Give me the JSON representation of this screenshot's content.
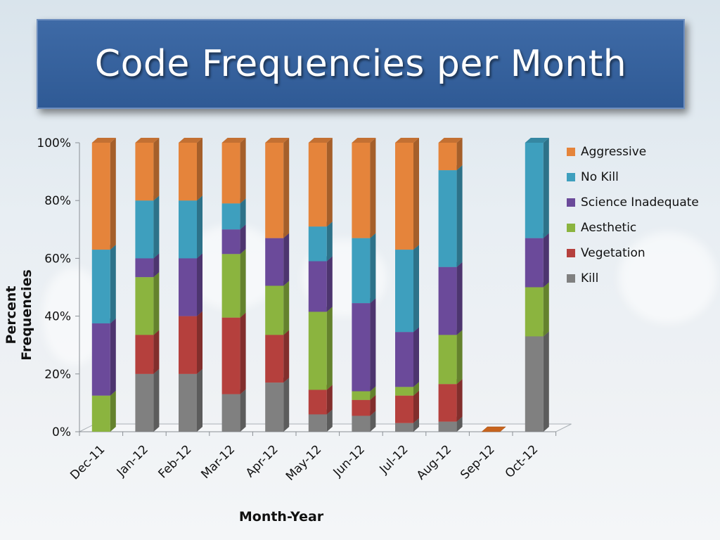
{
  "title": "Code Frequencies per Month",
  "chart_data": {
    "type": "bar",
    "stacked": true,
    "percent": true,
    "xlabel": "Month-Year",
    "ylabel": "Percent Frequencies",
    "ylim": [
      0,
      100
    ],
    "y_ticks": [
      "0%",
      "20%",
      "40%",
      "60%",
      "80%",
      "100%"
    ],
    "categories": [
      "Dec-11",
      "Jan-12",
      "Feb-12",
      "Mar-12",
      "Apr-12",
      "May-12",
      "Jun-12",
      "Jul-12",
      "Aug-12",
      "Sep-12",
      "Oct-12"
    ],
    "legend_position": "right",
    "series": [
      {
        "name": "Kill",
        "color": "#808080",
        "values": [
          0,
          20,
          20,
          13,
          17,
          6,
          5.5,
          3,
          3.5,
          0,
          33
        ]
      },
      {
        "name": "Vegetation",
        "color": "#b5403d",
        "values": [
          0,
          13.5,
          20,
          26.5,
          16.5,
          8.5,
          5.5,
          9.5,
          13,
          0,
          0
        ]
      },
      {
        "name": "Aesthetic",
        "color": "#8bb43f",
        "values": [
          12.5,
          20,
          0,
          22,
          17,
          27,
          3,
          3,
          17,
          0,
          17
        ]
      },
      {
        "name": "Science Inadequate",
        "color": "#6b4a9a",
        "values": [
          25,
          6.5,
          20,
          8.5,
          16.5,
          17.5,
          30.5,
          19,
          23.5,
          0,
          17
        ]
      },
      {
        "name": "No Kill",
        "color": "#3e9fbe",
        "values": [
          25.5,
          20,
          20,
          9,
          0,
          12,
          22.5,
          28.5,
          33.5,
          0,
          33
        ]
      },
      {
        "name": "Aggressive",
        "color": "#e5843b",
        "values": [
          37,
          20,
          20,
          21,
          33,
          29,
          33,
          37,
          9.5,
          0,
          0
        ]
      }
    ]
  }
}
